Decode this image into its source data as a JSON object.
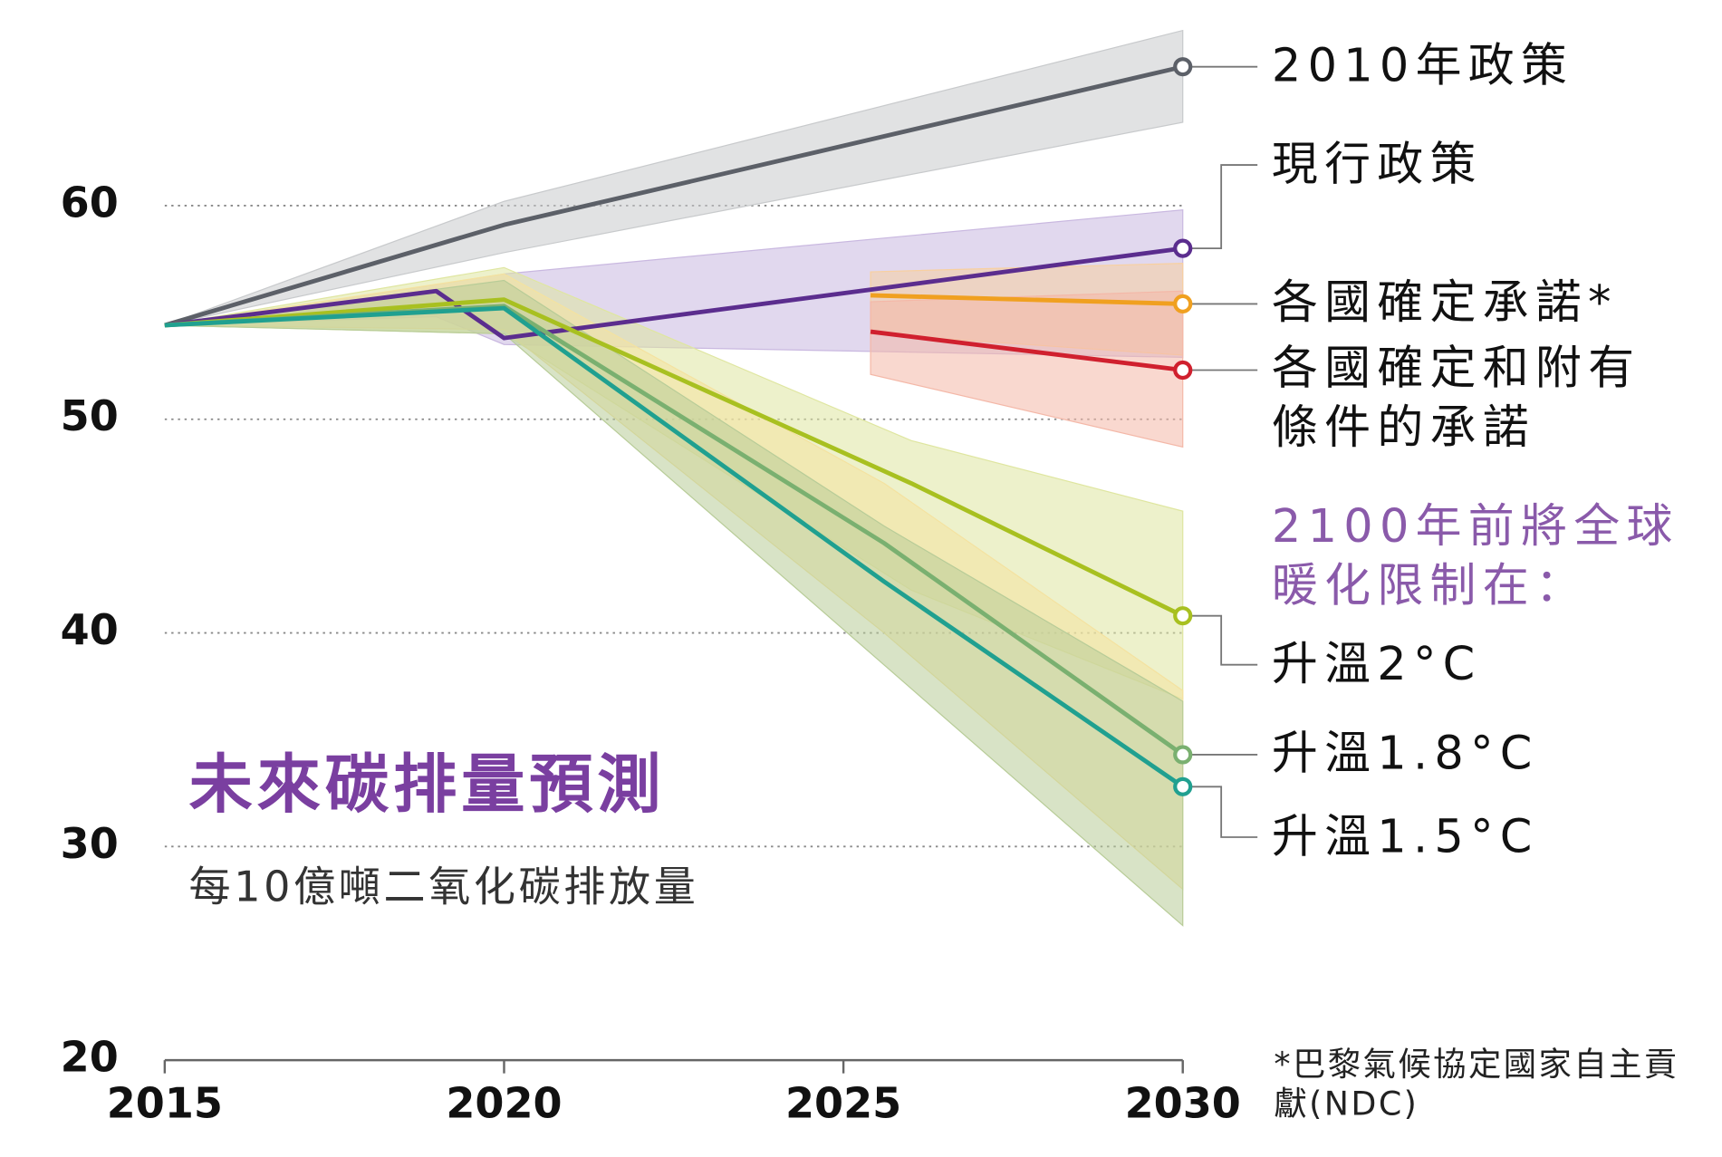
{
  "chart_data": {
    "type": "line",
    "title": "未來碳排量預測",
    "subtitle": "每10億噸二氧化碳排放量",
    "annotation": "2100年前將全球暖化限制在：",
    "footnote": "*巴黎氣候協定國家自主貢獻(NDC)",
    "xlim": [
      2015,
      2030
    ],
    "xticks": [
      2015,
      2020,
      2025,
      2030
    ],
    "ylim": [
      20,
      69
    ],
    "yticks": [
      20,
      30,
      40,
      50,
      60
    ],
    "grid": true,
    "series": [
      {
        "name": "2010年政策",
        "color": "#5c6068",
        "band_color": "#c8cacc",
        "x": [
          2015,
          2020,
          2030
        ],
        "values": [
          54.4,
          59.1,
          66.5
        ],
        "lower": [
          54.4,
          57.8,
          63.9
        ],
        "upper": [
          54.4,
          60.2,
          68.2
        ]
      },
      {
        "name": "現行政策",
        "color": "#5b2d8e",
        "band_color": "#c9b8e0",
        "x": [
          2015,
          2019,
          2020,
          2030
        ],
        "values": [
          54.4,
          56.0,
          53.8,
          58.0
        ],
        "lower": [
          54.4,
          54.8,
          53.5,
          52.9
        ],
        "upper": [
          54.4,
          56.3,
          56.8,
          59.8
        ]
      },
      {
        "name": "各國確定承諾*",
        "color": "#f0a020",
        "band_color": "#f8d0a0",
        "x": [
          2025.4,
          2030
        ],
        "values": [
          55.8,
          55.4
        ],
        "lower": [
          54.0,
          53.0
        ],
        "upper": [
          56.9,
          57.3
        ]
      },
      {
        "name": "各國確定和附有條件的承諾",
        "color": "#d0202e",
        "band_color": "#f4b8a8",
        "x": [
          2025.4,
          2030
        ],
        "values": [
          54.1,
          52.3
        ],
        "lower": [
          52.1,
          48.7
        ],
        "upper": [
          55.5,
          56.0
        ]
      },
      {
        "name": "升溫2°C",
        "color": "#a8c020",
        "band_color": "#dfe6a0",
        "x": [
          2015,
          2020,
          2026,
          2030
        ],
        "values": [
          54.4,
          55.6,
          47.0,
          40.8
        ],
        "lower": [
          54.4,
          54.0,
          42.0,
          36.9
        ],
        "upper": [
          54.4,
          57.1,
          49.0,
          45.7
        ]
      },
      {
        "name": "升溫1.8°C",
        "color": "#7ab070",
        "band_color": "#f4e2a0",
        "x": [
          2015,
          2020,
          2025.6,
          2030
        ],
        "values": [
          54.4,
          55.3,
          44.2,
          34.3
        ],
        "lower": [
          54.4,
          54.2,
          40.0,
          28.0
        ],
        "upper": [
          54.4,
          56.8,
          47.0,
          37.3
        ]
      },
      {
        "name": "升溫1.5°C",
        "color": "#20a090",
        "band_color": "#b8cc98",
        "x": [
          2015,
          2020,
          2025.6,
          2030
        ],
        "values": [
          54.4,
          55.2,
          42.4,
          32.8
        ],
        "lower": [
          54.4,
          54.0,
          38.5,
          26.3
        ],
        "upper": [
          54.4,
          56.5,
          45.0,
          36.8
        ]
      }
    ]
  }
}
